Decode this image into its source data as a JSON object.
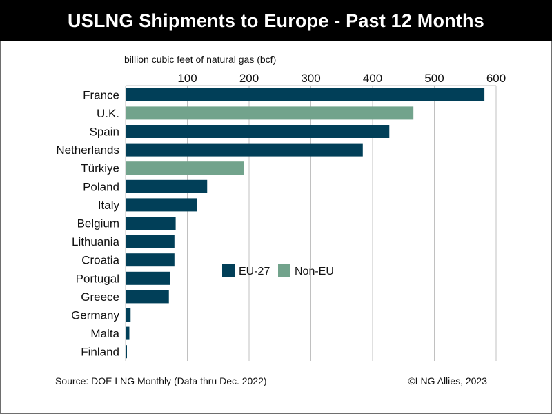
{
  "header": {
    "title": "USLNG Shipments to Europe - Past 12 Months"
  },
  "footer": {
    "source": "Source: DOE LNG Monthly (Data thru Dec. 2022)",
    "copyright": "©LNG Allies, 2023"
  },
  "colors": {
    "eu27": "#013f58",
    "non_eu": "#72a38c",
    "grid": "#c0c0c0"
  },
  "chart_data": {
    "type": "bar",
    "orientation": "horizontal",
    "title": "USLNG Shipments to Europe - Past 12 Months",
    "xlabel": "billion cubic feet of natural gas (bcf)",
    "ylabel": "",
    "xlim": [
      0,
      600
    ],
    "x_ticks": [
      100,
      200,
      300,
      400,
      500,
      600
    ],
    "x_axis_position": "top",
    "grid": true,
    "legend_position": "center",
    "legend": [
      {
        "name": "EU-27",
        "color": "#013f58"
      },
      {
        "name": "Non-EU",
        "color": "#72a38c"
      }
    ],
    "categories": [
      "France",
      "U.K.",
      "Spain",
      "Netherlands",
      "Türkiye",
      "Poland",
      "Italy",
      "Belgium",
      "Lithuania",
      "Croatia",
      "Portugal",
      "Greece",
      "Germany",
      "Malta",
      "Finland"
    ],
    "values": [
      580,
      465,
      426,
      383,
      191,
      131,
      114,
      80,
      78,
      78,
      71,
      69,
      7,
      5,
      1
    ],
    "groups": [
      "EU-27",
      "Non-EU",
      "EU-27",
      "EU-27",
      "Non-EU",
      "EU-27",
      "EU-27",
      "EU-27",
      "EU-27",
      "EU-27",
      "EU-27",
      "EU-27",
      "EU-27",
      "EU-27",
      "EU-27"
    ]
  }
}
